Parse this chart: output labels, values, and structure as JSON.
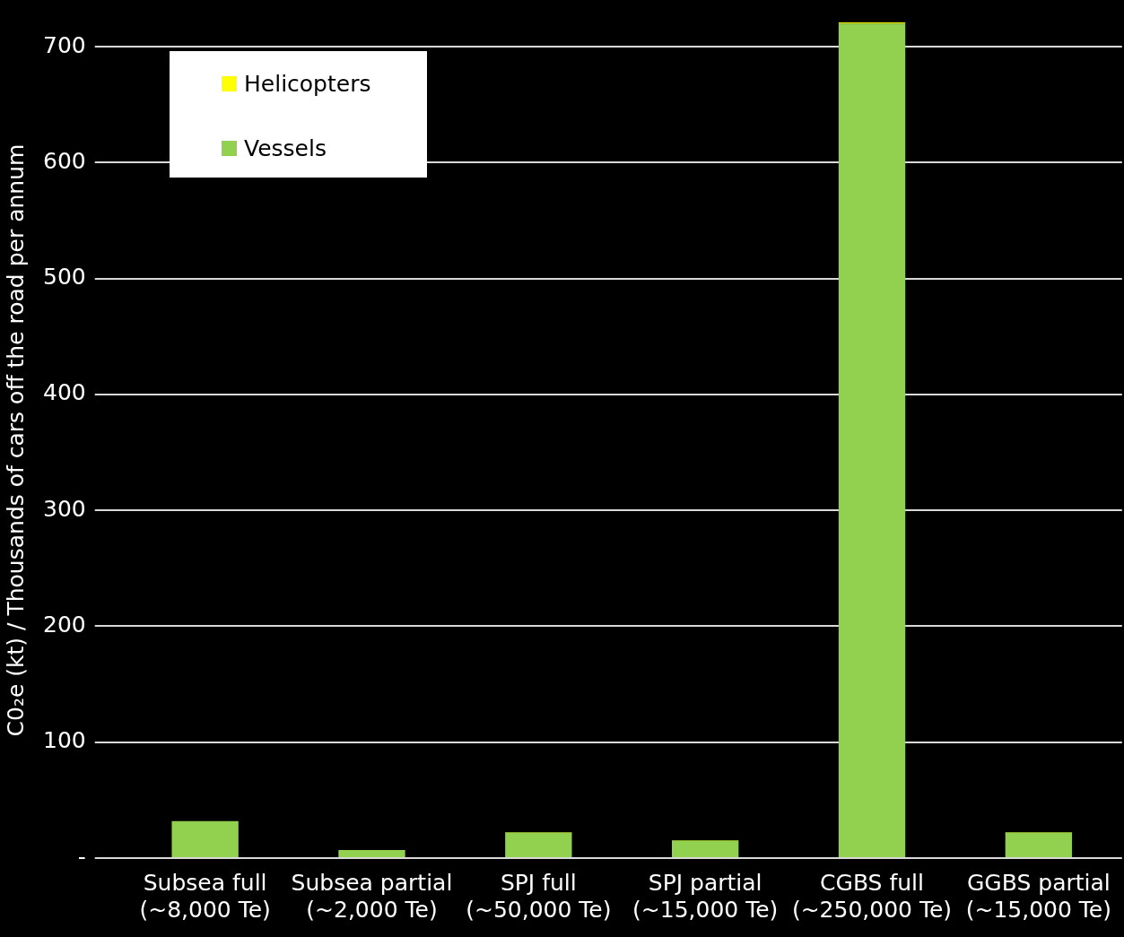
{
  "chart_data": {
    "type": "bar",
    "stacked": true,
    "ylabel": "C0₂e (kt) / Thousands of cars off the road per annum",
    "categories": [
      "Subsea full\n(~8,000 Te)",
      "Subsea partial\n(~2,000 Te)",
      "SPJ full\n(~50,000 Te)",
      "SPJ partial\n(~15,000 Te)",
      "CGBS full\n(~250,000 Te)",
      "GGBS partial\n(~15,000 Te)"
    ],
    "series": [
      {
        "name": "Vessels",
        "color": "#92d050",
        "values": [
          32,
          7,
          22,
          15,
          720,
          22
        ]
      },
      {
        "name": "Helicopters",
        "color": "#ffff00",
        "values": [
          0,
          0,
          0.5,
          0.5,
          1,
          0.5
        ]
      }
    ],
    "ylim": [
      0,
      721
    ],
    "yticks": [
      {
        "value": 0,
        "label": "-"
      },
      100,
      200,
      300,
      400,
      500,
      600,
      700
    ],
    "grid": "y",
    "legend": "top left"
  }
}
